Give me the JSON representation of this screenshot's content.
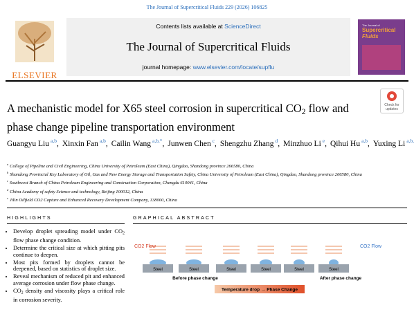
{
  "header": {
    "citation": "The Journal of Supercritical Fluids 229 (2026) 106825",
    "contents_prefix": "Contents lists available at",
    "contents_link": "ScienceDirect",
    "journal_title": "The Journal of Supercritical Fluids",
    "homepage_prefix": "journal homepage:",
    "homepage_link": "www.elsevier.com/locate/supflu",
    "publisher": "ELSEVIER",
    "cover": {
      "line1": "The Journal of",
      "line2": "Supercritical",
      "line3": "Fluids"
    },
    "check_updates": "Check for updates"
  },
  "article": {
    "title": {
      "before": "A mechanistic model for X65 steel corrosion in supercritical CO",
      "sub": "2",
      "after": " flow and phase change pipeline transportation environment"
    },
    "authors": [
      {
        "name": "Guangyu Liu",
        "affiliations": "a,b",
        "separator": ","
      },
      {
        "name": "Xinxin Fan",
        "affiliations": "a,b",
        "separator": ","
      },
      {
        "name": "Cailin Wang",
        "affiliations": "a,b,*",
        "separator": ","
      },
      {
        "name": "Junwen Chen",
        "affiliations": "c",
        "separator": ","
      },
      {
        "name": "Shengzhu Zhang",
        "affiliations": "d",
        "separator": ","
      },
      {
        "name": "Minzhuo Li",
        "affiliations": "e",
        "separator": ","
      },
      {
        "name": "Qihui Hu",
        "affiliations": "a,b",
        "separator": ","
      },
      {
        "name": "Yuxing Li",
        "affiliations": "a,b,*"
      }
    ],
    "affiliations": [
      {
        "mark": "a",
        "text": "College of Pipeline and Civil Engineering, China University of Petroleum (East China), Qingdao, Shandong province 266580, China"
      },
      {
        "mark": "b",
        "text": "Shandong Provincial Key Laboratory of Oil, Gas and New Energy Storage and Transportation Safety, China University of Petroleum (East China), Qingdao, Shandong province 266580, China"
      },
      {
        "mark": "c",
        "text": "Southwest Branch of China Petroleum Engineering and Construction Corporation, Chengdu 610041, China"
      },
      {
        "mark": "d",
        "text": "China Academy of safety Science and technology, Beijing 100012, China"
      },
      {
        "mark": "e",
        "text": "Jilin Oilfield CO2 Capture and Enhanced Recovery Development Company, 138000, China"
      }
    ]
  },
  "highlights": {
    "heading": "HIGHLIGHTS",
    "items": [
      {
        "before": "Develop droplet spreading model under CO",
        "sub": "2",
        "after": " flow phase change condition."
      },
      {
        "before": "Determine the critical size at which pitting pits continue to deepen."
      },
      {
        "before": "Most pits formed by droplets cannot be deepened, based on statistics of droplet size."
      },
      {
        "before": "Reveal mechanism of reduced pit and enhanced average corrosion under flow phase change."
      },
      {
        "before": "CO",
        "sub": "2",
        "after": " density and viscosity plays a critical role in corrosion severity."
      }
    ]
  },
  "graphical_abstract": {
    "heading": "GRAPHICAL ABSTRACT",
    "labels": {
      "flow_left": "CO2 Flow",
      "flow_right": "CO2 Flow",
      "steel": "Steel",
      "before": "Before phase change",
      "after": "After phase change",
      "arrow": "Temperature drop → Phase Change"
    }
  }
}
